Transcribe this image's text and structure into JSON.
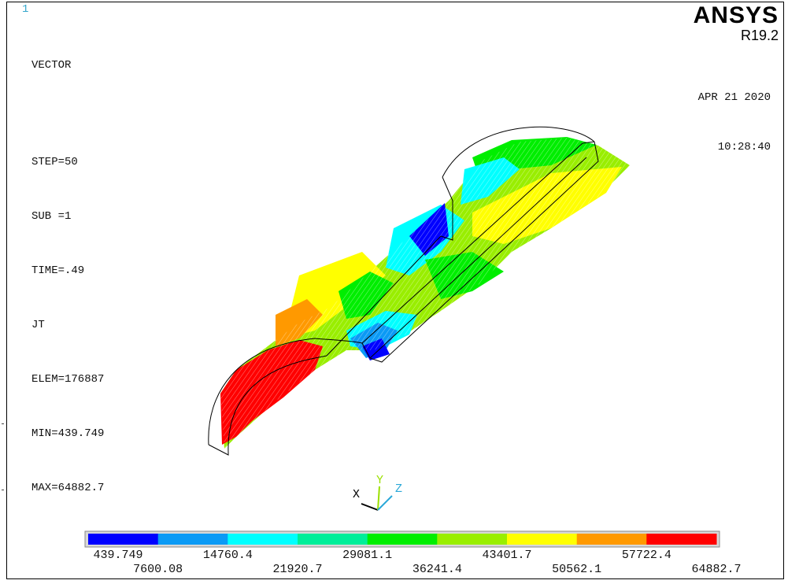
{
  "window_number": "1",
  "info_lines": {
    "plot_type": "VECTOR",
    "step": "STEP=50",
    "sub": "SUB =1",
    "time": "TIME=.49",
    "item": "JT",
    "elem": "ELEM=176887",
    "min": "MIN=439.749",
    "max": "MAX=64882.7"
  },
  "brand": {
    "logo": "ANSYS",
    "release": "R19.2"
  },
  "stamp": {
    "date": "APR 21 2020",
    "time": "10:28:40"
  },
  "triad": {
    "x_label": "X",
    "y_label": "Y",
    "z_label": "Z"
  },
  "legend": {
    "colors": [
      "#0000ff",
      "#0b9af5",
      "#00ffff",
      "#00ee99",
      "#00ee00",
      "#99ee00",
      "#ffff00",
      "#ff9900",
      "#ff0000"
    ],
    "labels": [
      "439.749",
      "7600.08",
      "14760.4",
      "21920.7",
      "29081.1",
      "36241.4",
      "43401.7",
      "50562.1",
      "57722.4",
      "64882.7"
    ]
  }
}
